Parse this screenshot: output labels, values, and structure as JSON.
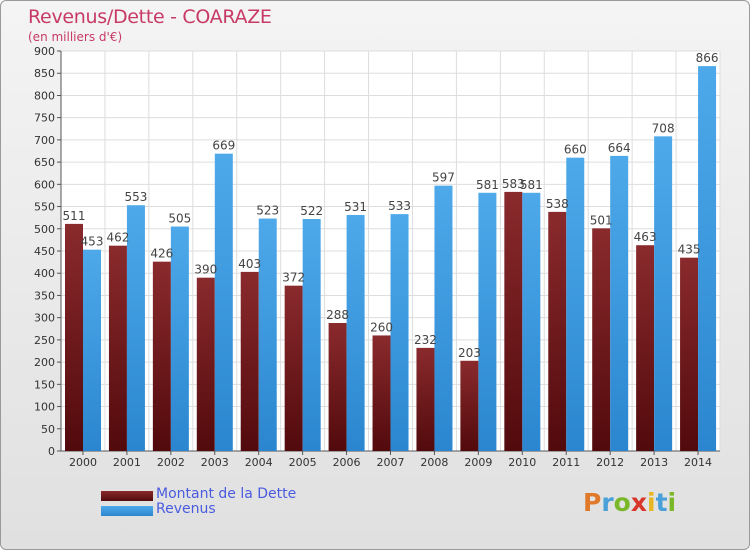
{
  "header": {
    "title": "Revenus/Dette - COARAZE",
    "subtitle": "(en milliers d'€)"
  },
  "colors": {
    "dette": "#7a1f22",
    "revenus": "#3d9be0",
    "title": "#c83a66",
    "legend_text": "#4a5be0"
  },
  "legend": [
    {
      "label": "Montant de la Dette",
      "color": "#6e1a1c"
    },
    {
      "label": "Revenus",
      "color": "#3d9be0"
    }
  ],
  "logo": {
    "text": "Proxiti"
  },
  "chart_data": {
    "type": "bar",
    "title": "Revenus/Dette - COARAZE",
    "ylabel": "(en milliers d'€)",
    "xlabel": "",
    "categories": [
      "2000",
      "2001",
      "2002",
      "2003",
      "2004",
      "2005",
      "2006",
      "2007",
      "2008",
      "2009",
      "2010",
      "2011",
      "2012",
      "2013",
      "2014"
    ],
    "series": [
      {
        "name": "Montant de la Dette",
        "values": [
          511,
          462,
          426,
          390,
          403,
          372,
          288,
          260,
          232,
          203,
          583,
          538,
          501,
          463,
          435
        ]
      },
      {
        "name": "Revenus",
        "values": [
          453,
          553,
          505,
          669,
          523,
          522,
          531,
          533,
          597,
          581,
          581,
          660,
          664,
          708,
          866
        ]
      }
    ],
    "ylim": [
      0,
      900
    ],
    "yticks": [
      0,
      50,
      100,
      150,
      200,
      250,
      300,
      350,
      400,
      450,
      500,
      550,
      600,
      650,
      700,
      750,
      800,
      850,
      900
    ],
    "grid": true,
    "legend_position": "bottom-left"
  }
}
